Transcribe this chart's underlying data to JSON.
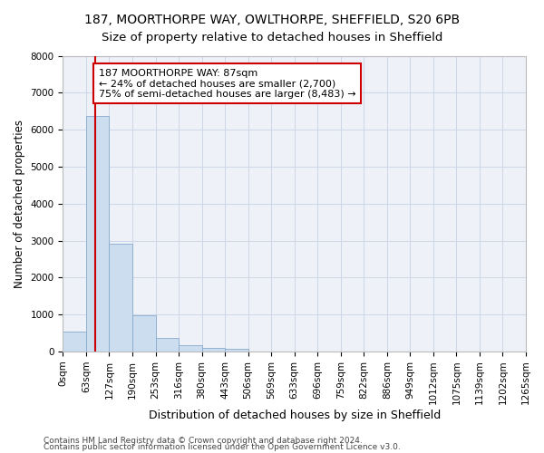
{
  "title_line1": "187, MOORTHORPE WAY, OWLTHORPE, SHEFFIELD, S20 6PB",
  "title_line2": "Size of property relative to detached houses in Sheffield",
  "xlabel": "Distribution of detached houses by size in Sheffield",
  "ylabel": "Number of detached properties",
  "footer_line1": "Contains HM Land Registry data © Crown copyright and database right 2024.",
  "footer_line2": "Contains public sector information licensed under the Open Government Licence v3.0.",
  "bar_values": [
    540,
    6380,
    2920,
    970,
    370,
    165,
    100,
    65,
    0,
    0,
    0,
    0,
    0,
    0,
    0,
    0,
    0,
    0,
    0,
    0
  ],
  "bar_labels": [
    "0sqm",
    "63sqm",
    "127sqm",
    "190sqm",
    "253sqm",
    "316sqm",
    "380sqm",
    "443sqm",
    "506sqm",
    "569sqm",
    "633sqm",
    "696sqm",
    "759sqm",
    "822sqm",
    "886sqm",
    "949sqm",
    "1012sqm",
    "1075sqm",
    "1139sqm",
    "1202sqm",
    "1265sqm"
  ],
  "bar_color": "#ccddf0",
  "bar_edgecolor": "#88aacc",
  "grid_color": "#d0d8e8",
  "bg_color": "#eef2f8",
  "annotation_line1": "187 MOORTHORPE WAY: 87sqm",
  "annotation_line2": "← 24% of detached houses are smaller (2,700)",
  "annotation_line3": "75% of semi-detached houses are larger (8,483) →",
  "annotation_box_edgecolor": "#cc0000",
  "annotation_box_facecolor": "white",
  "vline_color": "#cc0000",
  "vline_x": 1.375,
  "ylim": [
    0,
    8000
  ],
  "yticks": [
    0,
    1000,
    2000,
    3000,
    4000,
    5000,
    6000,
    7000,
    8000
  ],
  "title1_fontsize": 10,
  "title2_fontsize": 9.5,
  "xlabel_fontsize": 9,
  "ylabel_fontsize": 8.5,
  "tick_fontsize": 7.5,
  "footer_fontsize": 6.5,
  "ann_fontsize": 8
}
